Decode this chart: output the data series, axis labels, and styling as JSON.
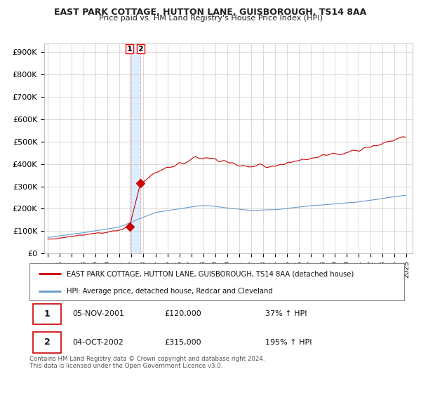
{
  "title1": "EAST PARK COTTAGE, HUTTON LANE, GUISBOROUGH, TS14 8AA",
  "title2": "Price paid vs. HM Land Registry's House Price Index (HPI)",
  "ylabel_ticks": [
    "£0",
    "£100K",
    "£200K",
    "£300K",
    "£400K",
    "£500K",
    "£600K",
    "£700K",
    "£800K",
    "£900K"
  ],
  "ytick_values": [
    0,
    100000,
    200000,
    300000,
    400000,
    500000,
    600000,
    700000,
    800000,
    900000
  ],
  "ylim": [
    0,
    940000
  ],
  "xlim_start": 1994.7,
  "xlim_end": 2025.5,
  "sale1_x": 2001.84,
  "sale1_y": 120000,
  "sale2_x": 2002.75,
  "sale2_y": 315000,
  "red_line_color": "#cc0000",
  "blue_line_color": "#6699cc",
  "marker_color": "#cc0000",
  "background_color": "#ffffff",
  "grid_color": "#cccccc",
  "highlight_color": "#ddeeff",
  "legend1": "EAST PARK COTTAGE, HUTTON LANE, GUISBOROUGH, TS14 8AA (detached house)",
  "legend2": "HPI: Average price, detached house, Redcar and Cleveland",
  "table_row1": [
    "1",
    "05-NOV-2001",
    "£120,000",
    "37% ↑ HPI"
  ],
  "table_row2": [
    "2",
    "04-OCT-2002",
    "£315,000",
    "195% ↑ HPI"
  ],
  "footer": "Contains HM Land Registry data © Crown copyright and database right 2024.\nThis data is licensed under the Open Government Licence v3.0.",
  "xtick_years": [
    1995,
    1996,
    1997,
    1998,
    1999,
    2000,
    2001,
    2002,
    2003,
    2004,
    2005,
    2006,
    2007,
    2008,
    2009,
    2010,
    2011,
    2012,
    2013,
    2014,
    2015,
    2016,
    2017,
    2018,
    2019,
    2020,
    2021,
    2022,
    2023,
    2024,
    2025
  ]
}
